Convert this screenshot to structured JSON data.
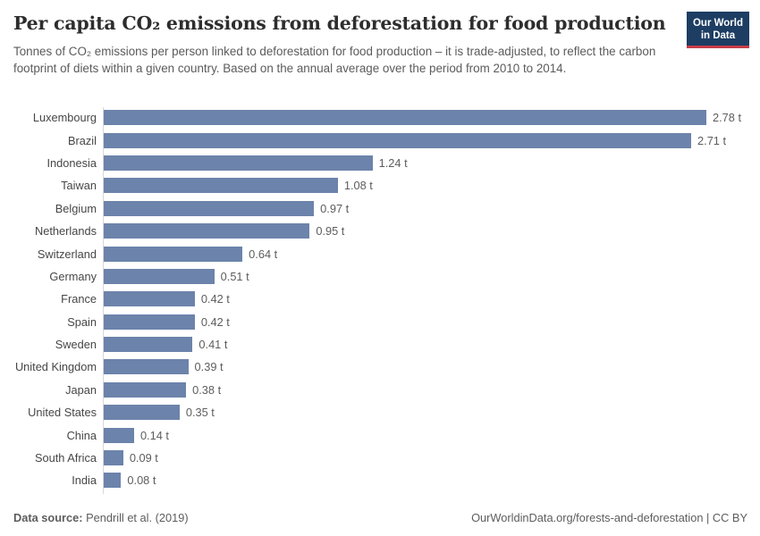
{
  "logo": {
    "line1": "Our World",
    "line2": "in Data",
    "bg_color": "#1d3d63",
    "accent_color": "#c73c47"
  },
  "chart_data": {
    "type": "bar",
    "orientation": "horizontal",
    "title": "Per capita CO₂ emissions from deforestation for food production",
    "subtitle": "Tonnes of CO₂ emissions per person linked to deforestation for food production – it is trade-adjusted, to reflect the carbon footprint of diets within a given country. Based on the annual average over the period from 2010 to 2014.",
    "categories": [
      "Luxembourg",
      "Brazil",
      "Indonesia",
      "Taiwan",
      "Belgium",
      "Netherlands",
      "Switzerland",
      "Germany",
      "France",
      "Spain",
      "Sweden",
      "United Kingdom",
      "Japan",
      "United States",
      "China",
      "South Africa",
      "India"
    ],
    "values": [
      2.78,
      2.71,
      1.24,
      1.08,
      0.97,
      0.95,
      0.64,
      0.51,
      0.42,
      0.42,
      0.41,
      0.39,
      0.38,
      0.35,
      0.14,
      0.09,
      0.08
    ],
    "value_labels": [
      "2.78 t",
      "2.71 t",
      "1.24 t",
      "1.08 t",
      "0.97 t",
      "0.95 t",
      "0.64 t",
      "0.51 t",
      "0.42 t",
      "0.42 t",
      "0.41 t",
      "0.39 t",
      "0.38 t",
      "0.35 t",
      "0.14 t",
      "0.09 t",
      "0.08 t"
    ],
    "unit": "t",
    "xlim": [
      0,
      2.78
    ],
    "bar_color": "#6c83ab",
    "axis_color": "#d8d8d8",
    "grid": false,
    "legend": "none"
  },
  "footer": {
    "source_label": "Data source:",
    "source_value": " Pendrill et al. (2019)",
    "credit": "OurWorldinData.org/forests-and-deforestation | CC BY"
  }
}
